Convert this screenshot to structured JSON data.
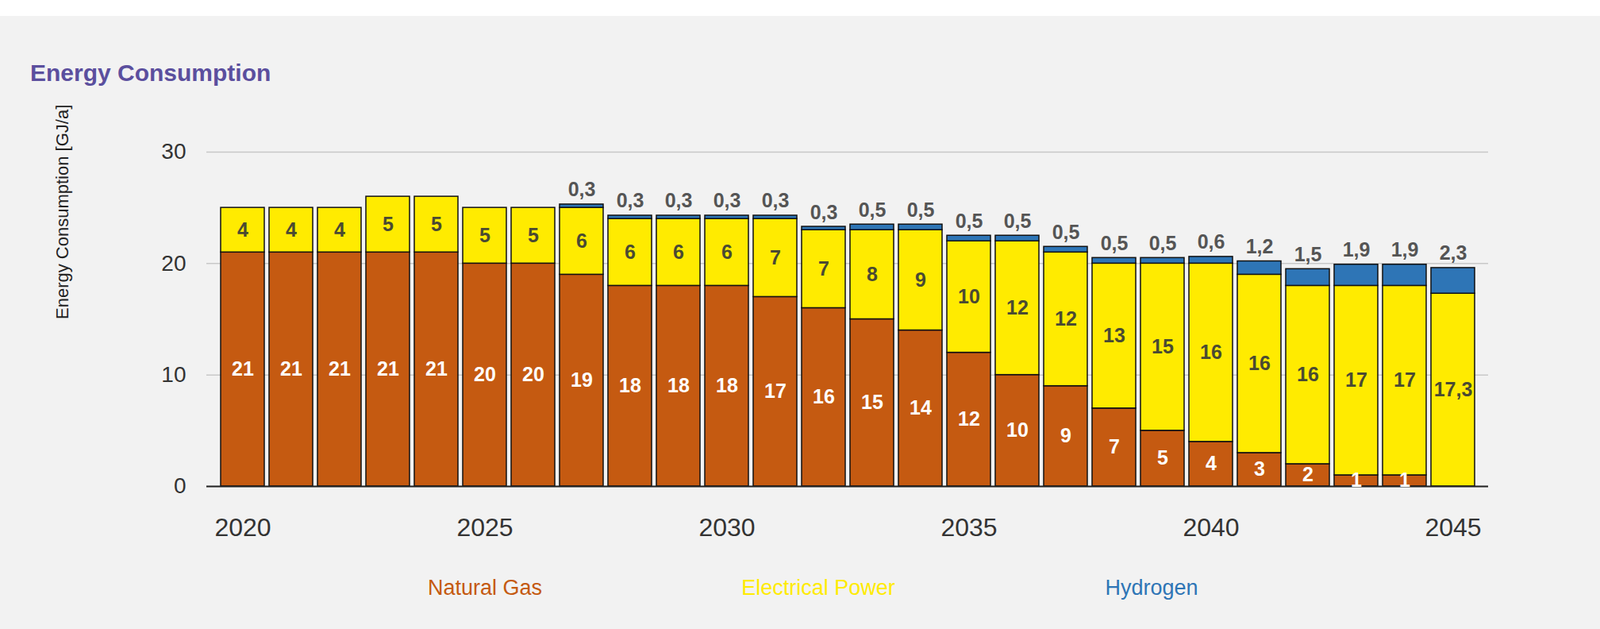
{
  "chart_data": {
    "type": "bar",
    "title": "Energy Consumption",
    "y_label": "Energy Consumption [GJ/a]",
    "categories": [
      "2020",
      null,
      null,
      null,
      null,
      "2025",
      null,
      null,
      null,
      null,
      "2030",
      null,
      null,
      null,
      null,
      "2035",
      null,
      null,
      null,
      null,
      "2040",
      null,
      null,
      null,
      null,
      "2045"
    ],
    "series": [
      {
        "name": "Natural Gas",
        "color": "#c55a11",
        "values": [
          21,
          21,
          21,
          21,
          21,
          20,
          20,
          19,
          18,
          18,
          18,
          17,
          16,
          15,
          14,
          12,
          10,
          9,
          7,
          5,
          4,
          3,
          2,
          1,
          1,
          null
        ]
      },
      {
        "name": "Electrical Power",
        "color": "#ffeb00",
        "values": [
          4,
          4,
          4,
          5,
          5,
          5,
          5,
          6,
          6,
          6,
          6,
          7,
          7,
          8,
          9,
          10,
          12,
          12,
          13,
          15,
          16,
          16,
          16,
          17,
          17,
          17.3
        ],
        "value_labels": [
          "4",
          "4",
          "4",
          "5",
          "5",
          "5",
          "5",
          "6",
          "6",
          "6",
          "6",
          "7",
          "7",
          "8",
          "9",
          "10",
          "12",
          "12",
          "13",
          "15",
          "16",
          "16",
          "16",
          "17",
          "17",
          "17,3"
        ]
      },
      {
        "name": "Hydrogen",
        "color": "#2e75b6",
        "values": [
          null,
          null,
          null,
          null,
          null,
          null,
          null,
          0.3,
          0.3,
          0.3,
          0.3,
          0.3,
          0.3,
          0.5,
          0.5,
          0.5,
          0.5,
          0.5,
          0.5,
          0.5,
          0.6,
          1.2,
          1.5,
          1.9,
          1.9,
          2.3
        ],
        "value_labels": [
          null,
          null,
          null,
          null,
          null,
          null,
          null,
          "0,3",
          "0,3",
          "0,3",
          "0,3",
          "0,3",
          "0,3",
          "0,5",
          "0,5",
          "0,5",
          "0,5",
          "0,5",
          "0,5",
          "0,5",
          "0,6",
          "1,2",
          "1,5",
          "1,9",
          "1,9",
          "2,3"
        ]
      }
    ],
    "ylim": [
      0,
      30
    ],
    "yticks": [
      0,
      10,
      20,
      30
    ],
    "grid": true,
    "stacked": true,
    "data_labels": true,
    "legend": "bottom"
  }
}
